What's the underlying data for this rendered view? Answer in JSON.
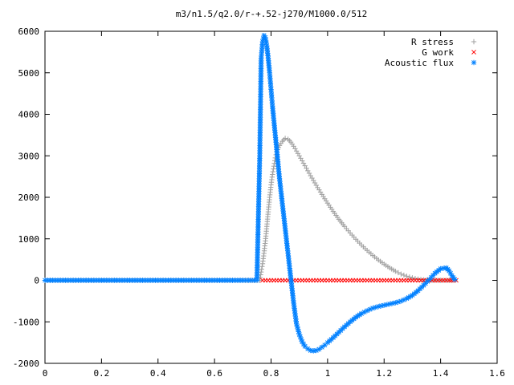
{
  "chart_data": {
    "type": "scatter",
    "title": "m3/n1.5/q2.0/r-+.52-j270/M1000.0/512",
    "xlabel": "",
    "ylabel": "",
    "xlim": [
      0,
      1.6
    ],
    "ylim": [
      -2000,
      6000
    ],
    "x_ticks": [
      "0",
      "0.2",
      "0.4",
      "0.6",
      "0.8",
      "1",
      "1.2",
      "1.4",
      "1.6"
    ],
    "y_ticks": [
      "6000",
      "5000",
      "4000",
      "3000",
      "2000",
      "1000",
      "0",
      "-1000",
      "-2000"
    ],
    "grid": false,
    "legend_position": "top-right",
    "series": [
      {
        "name": "R stress",
        "marker": "plus",
        "color": "#a0a0a0",
        "points": [
          [
            0.0,
            0
          ],
          [
            0.1,
            0
          ],
          [
            0.2,
            0
          ],
          [
            0.3,
            0
          ],
          [
            0.4,
            0
          ],
          [
            0.5,
            0
          ],
          [
            0.6,
            0
          ],
          [
            0.7,
            0
          ],
          [
            0.76,
            0
          ],
          [
            0.765,
            200
          ],
          [
            0.77,
            400
          ],
          [
            0.775,
            650
          ],
          [
            0.78,
            950
          ],
          [
            0.785,
            1300
          ],
          [
            0.79,
            1650
          ],
          [
            0.795,
            2000
          ],
          [
            0.8,
            2300
          ],
          [
            0.805,
            2550
          ],
          [
            0.81,
            2750
          ],
          [
            0.815,
            2950
          ],
          [
            0.82,
            3100
          ],
          [
            0.83,
            3250
          ],
          [
            0.84,
            3350
          ],
          [
            0.85,
            3420
          ],
          [
            0.86,
            3400
          ],
          [
            0.87,
            3330
          ],
          [
            0.88,
            3230
          ],
          [
            0.9,
            3000
          ],
          [
            0.92,
            2760
          ],
          [
            0.94,
            2520
          ],
          [
            0.96,
            2290
          ],
          [
            0.98,
            2070
          ],
          [
            1.0,
            1860
          ],
          [
            1.02,
            1660
          ],
          [
            1.04,
            1470
          ],
          [
            1.06,
            1300
          ],
          [
            1.08,
            1140
          ],
          [
            1.1,
            990
          ],
          [
            1.12,
            850
          ],
          [
            1.14,
            720
          ],
          [
            1.16,
            600
          ],
          [
            1.18,
            490
          ],
          [
            1.2,
            390
          ],
          [
            1.22,
            300
          ],
          [
            1.24,
            220
          ],
          [
            1.26,
            150
          ],
          [
            1.28,
            100
          ],
          [
            1.3,
            60
          ],
          [
            1.32,
            30
          ],
          [
            1.34,
            10
          ],
          [
            1.36,
            0
          ],
          [
            1.4,
            0
          ],
          [
            1.45,
            0
          ]
        ]
      },
      {
        "name": "G work",
        "marker": "cross",
        "color": "#ff0000",
        "points": [
          [
            0.77,
            0
          ],
          [
            0.8,
            0
          ],
          [
            0.83,
            0
          ],
          [
            0.86,
            0
          ],
          [
            0.89,
            0
          ],
          [
            0.92,
            0
          ],
          [
            0.95,
            0
          ],
          [
            0.98,
            0
          ],
          [
            1.01,
            0
          ],
          [
            1.04,
            0
          ],
          [
            1.07,
            0
          ],
          [
            1.1,
            0
          ],
          [
            1.13,
            0
          ],
          [
            1.16,
            0
          ],
          [
            1.19,
            0
          ],
          [
            1.22,
            0
          ],
          [
            1.25,
            0
          ],
          [
            1.28,
            0
          ],
          [
            1.31,
            0
          ],
          [
            1.34,
            0
          ],
          [
            1.37,
            0
          ],
          [
            1.4,
            0
          ],
          [
            1.43,
            0
          ],
          [
            1.455,
            0
          ]
        ]
      },
      {
        "name": "Acoustic flux",
        "marker": "star",
        "color": "#0080ff",
        "points": [
          [
            0.0,
            0
          ],
          [
            0.1,
            0
          ],
          [
            0.2,
            0
          ],
          [
            0.3,
            0
          ],
          [
            0.4,
            0
          ],
          [
            0.5,
            0
          ],
          [
            0.6,
            0
          ],
          [
            0.7,
            0
          ],
          [
            0.75,
            0
          ],
          [
            0.76,
            3000
          ],
          [
            0.765,
            5350
          ],
          [
            0.77,
            5750
          ],
          [
            0.775,
            5900
          ],
          [
            0.78,
            5850
          ],
          [
            0.785,
            5650
          ],
          [
            0.79,
            5350
          ],
          [
            0.795,
            5000
          ],
          [
            0.8,
            4600
          ],
          [
            0.805,
            4200
          ],
          [
            0.81,
            3850
          ],
          [
            0.815,
            3500
          ],
          [
            0.82,
            3150
          ],
          [
            0.825,
            2800
          ],
          [
            0.83,
            2450
          ],
          [
            0.835,
            2150
          ],
          [
            0.84,
            1850
          ],
          [
            0.845,
            1550
          ],
          [
            0.85,
            1250
          ],
          [
            0.855,
            950
          ],
          [
            0.86,
            650
          ],
          [
            0.865,
            350
          ],
          [
            0.87,
            50
          ],
          [
            0.875,
            -250
          ],
          [
            0.88,
            -550
          ],
          [
            0.885,
            -800
          ],
          [
            0.89,
            -1050
          ],
          [
            0.9,
            -1300
          ],
          [
            0.91,
            -1480
          ],
          [
            0.92,
            -1590
          ],
          [
            0.93,
            -1650
          ],
          [
            0.94,
            -1690
          ],
          [
            0.95,
            -1700
          ],
          [
            0.96,
            -1690
          ],
          [
            0.97,
            -1660
          ],
          [
            0.98,
            -1610
          ],
          [
            0.99,
            -1560
          ],
          [
            1.0,
            -1500
          ],
          [
            1.02,
            -1380
          ],
          [
            1.04,
            -1250
          ],
          [
            1.06,
            -1120
          ],
          [
            1.08,
            -1000
          ],
          [
            1.1,
            -890
          ],
          [
            1.12,
            -800
          ],
          [
            1.14,
            -730
          ],
          [
            1.16,
            -670
          ],
          [
            1.18,
            -630
          ],
          [
            1.2,
            -600
          ],
          [
            1.22,
            -570
          ],
          [
            1.24,
            -540
          ],
          [
            1.26,
            -500
          ],
          [
            1.28,
            -440
          ],
          [
            1.3,
            -360
          ],
          [
            1.32,
            -250
          ],
          [
            1.34,
            -120
          ],
          [
            1.36,
            20
          ],
          [
            1.38,
            170
          ],
          [
            1.4,
            280
          ],
          [
            1.42,
            300
          ],
          [
            1.43,
            230
          ],
          [
            1.44,
            110
          ],
          [
            1.45,
            20
          ]
        ]
      }
    ]
  }
}
